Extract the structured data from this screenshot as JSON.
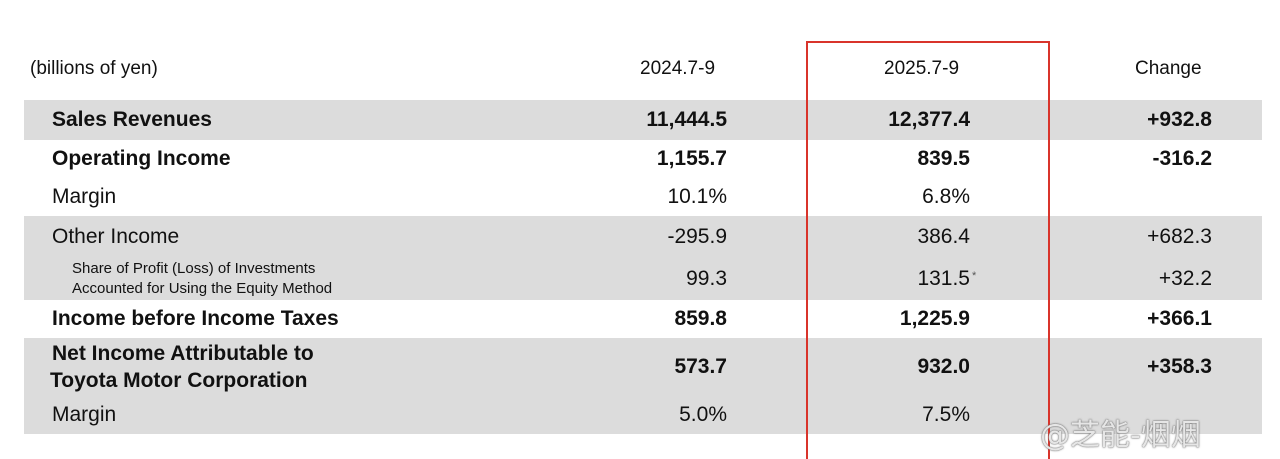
{
  "table": {
    "header": [
      "(billions of yen)",
      "2024.7-9",
      "2025.7-9",
      "Change"
    ],
    "rows": [
      {
        "label": "Sales Revenues",
        "values": [
          "11,444.5",
          "12,377.4",
          "+932.8"
        ]
      },
      {
        "label": "Operating Income",
        "values": [
          "1,155.7",
          "839.5",
          "-316.2"
        ]
      },
      {
        "label": "Margin",
        "values": [
          "10.1%",
          "6.8%"
        ]
      },
      {
        "label": "Other Income",
        "values": [
          "-295.9",
          "386.4",
          "+682.3"
        ]
      },
      {
        "label": [
          "Share of Profit (Loss) of Investments",
          "Accounted for Using the Equity Method"
        ],
        "values": [
          "99.3",
          "131.5",
          "+32.2"
        ],
        "note": "*"
      },
      {
        "label": "Income before Income Taxes",
        "values": [
          "859.8",
          "1,225.9",
          "+366.1"
        ]
      },
      {
        "label": [
          "Net Income Attributable to",
          "Toyota Motor Corporation"
        ],
        "values": [
          "573.7",
          "932.0",
          "+358.3"
        ]
      },
      {
        "label": "Margin",
        "values": [
          "5.0%",
          "7.5%"
        ]
      }
    ]
  },
  "watermark": "@芝能-烟烟"
}
